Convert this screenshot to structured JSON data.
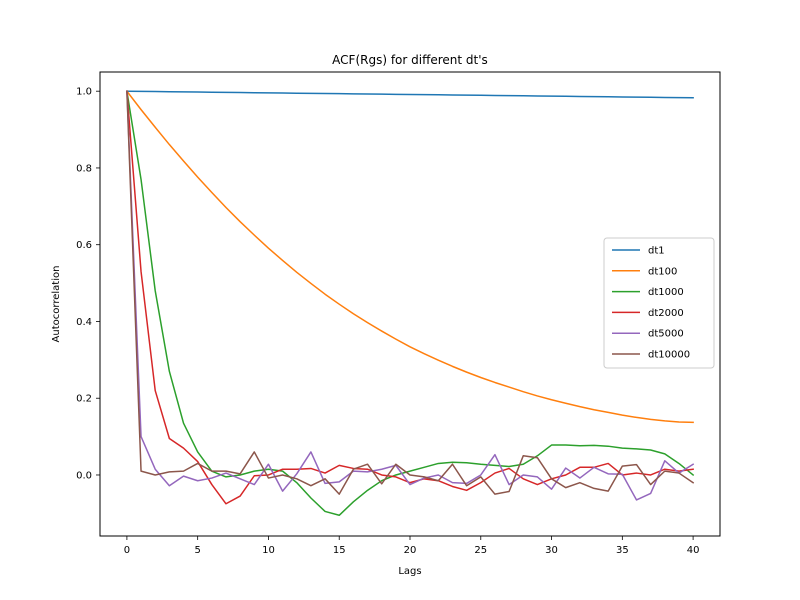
{
  "chart_data": {
    "type": "line",
    "title": "ACF(Rgs) for different dt's",
    "xlabel": "Lags",
    "ylabel": "Autocorrelation",
    "xlim": [
      -1.9,
      41.9
    ],
    "ylim": [
      -0.159,
      1.05
    ],
    "xticks": [
      0,
      5,
      10,
      15,
      20,
      25,
      30,
      35,
      40
    ],
    "yticks": [
      0.0,
      0.2,
      0.4,
      0.6,
      0.8,
      1.0
    ],
    "ytick_labels": [
      "0.0",
      "0.2",
      "0.4",
      "0.6",
      "0.8",
      "1.0"
    ],
    "legend_position": "center-right",
    "grid": false,
    "x": [
      0,
      1,
      2,
      3,
      4,
      5,
      6,
      7,
      8,
      9,
      10,
      11,
      12,
      13,
      14,
      15,
      16,
      17,
      18,
      19,
      20,
      21,
      22,
      23,
      24,
      25,
      26,
      27,
      28,
      29,
      30,
      31,
      32,
      33,
      34,
      35,
      36,
      37,
      38,
      39,
      40
    ],
    "series": [
      {
        "name": "dt1",
        "color": "#1f77b4",
        "values": [
          1.0,
          0.9996,
          0.9991,
          0.9987,
          0.9983,
          0.9979,
          0.9974,
          0.997,
          0.9966,
          0.9961,
          0.9957,
          0.9953,
          0.9948,
          0.9944,
          0.994,
          0.9936,
          0.9931,
          0.9927,
          0.9923,
          0.9918,
          0.9914,
          0.991,
          0.9906,
          0.9901,
          0.9897,
          0.9893,
          0.9888,
          0.9884,
          0.988,
          0.9875,
          0.9871,
          0.9867,
          0.9863,
          0.9858,
          0.9854,
          0.985,
          0.9845,
          0.9841,
          0.9837,
          0.9832,
          0.9828
        ]
      },
      {
        "name": "dt100",
        "color": "#ff7f0e",
        "values": [
          1.0,
          0.952,
          0.906,
          0.861,
          0.818,
          0.776,
          0.736,
          0.697,
          0.66,
          0.625,
          0.591,
          0.559,
          0.528,
          0.499,
          0.471,
          0.445,
          0.42,
          0.397,
          0.375,
          0.354,
          0.334,
          0.316,
          0.299,
          0.283,
          0.268,
          0.254,
          0.241,
          0.229,
          0.217,
          0.206,
          0.196,
          0.187,
          0.178,
          0.17,
          0.163,
          0.156,
          0.15,
          0.145,
          0.141,
          0.138,
          0.137
        ]
      },
      {
        "name": "dt1000",
        "color": "#2ca02c",
        "values": [
          1.0,
          0.77,
          0.48,
          0.27,
          0.135,
          0.06,
          0.01,
          -0.005,
          0.0,
          0.01,
          0.015,
          0.01,
          -0.02,
          -0.06,
          -0.095,
          -0.105,
          -0.07,
          -0.04,
          -0.015,
          0.0,
          0.01,
          0.02,
          0.03,
          0.033,
          0.032,
          0.028,
          0.025,
          0.022,
          0.028,
          0.05,
          0.078,
          0.078,
          0.076,
          0.077,
          0.075,
          0.07,
          0.068,
          0.065,
          0.055,
          0.03,
          0.0
        ]
      },
      {
        "name": "dt2000",
        "color": "#d62728",
        "values": [
          1.0,
          0.53,
          0.22,
          0.095,
          0.07,
          0.035,
          -0.025,
          -0.075,
          -0.055,
          -0.002,
          0.0,
          0.015,
          0.015,
          0.017,
          0.005,
          0.025,
          0.017,
          0.015,
          0.0,
          -0.005,
          -0.02,
          -0.01,
          -0.015,
          -0.03,
          -0.04,
          -0.02,
          0.005,
          0.017,
          -0.01,
          -0.025,
          -0.01,
          0.0,
          0.02,
          0.02,
          0.03,
          0.0,
          0.005,
          0.0,
          0.015,
          0.01,
          0.015
        ]
      },
      {
        "name": "dt5000",
        "color": "#9467bd",
        "values": [
          1.0,
          0.1,
          0.015,
          -0.028,
          -0.003,
          -0.015,
          -0.008,
          0.005,
          -0.01,
          -0.025,
          0.028,
          -0.042,
          0.003,
          0.06,
          -0.022,
          -0.018,
          0.01,
          0.008,
          0.015,
          0.025,
          -0.025,
          -0.008,
          0.0,
          -0.02,
          -0.022,
          0.0,
          0.053,
          -0.025,
          0.0,
          -0.005,
          -0.037,
          0.018,
          -0.008,
          0.02,
          0.003,
          0.002,
          -0.065,
          -0.048,
          0.037,
          0.005,
          0.028
        ]
      },
      {
        "name": "dt10000",
        "color": "#8c564b",
        "values": [
          1.0,
          0.01,
          0.0,
          0.008,
          0.01,
          0.03,
          0.01,
          0.01,
          0.003,
          0.06,
          -0.008,
          0.0,
          -0.01,
          -0.028,
          -0.01,
          -0.05,
          0.015,
          0.028,
          -0.023,
          0.028,
          0.0,
          -0.005,
          -0.015,
          0.028,
          -0.028,
          -0.005,
          -0.05,
          -0.043,
          0.05,
          0.045,
          -0.01,
          -0.033,
          -0.02,
          -0.035,
          -0.042,
          0.023,
          0.027,
          -0.025,
          0.01,
          0.005,
          -0.02
        ]
      }
    ]
  }
}
